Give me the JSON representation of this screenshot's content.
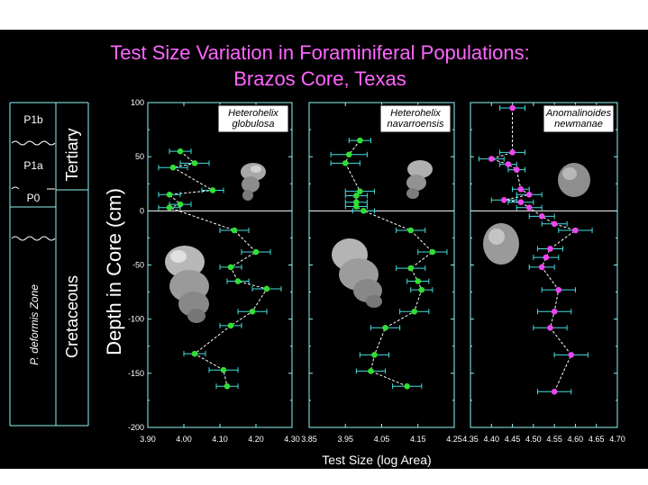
{
  "colors": {
    "background": "#000000",
    "title": "#ff66ff",
    "frame": "#8ff4f4",
    "text": "#ffffff",
    "green": "#33dd33",
    "magenta": "#ee44ee",
    "errorbar": "#44dddd"
  },
  "title_line1": "Test Size Variation in Foraminiferal Populations:",
  "title_line2": "Brazos Core, Texas",
  "ylabel": "Depth in Core (cm)",
  "xlabel": "Test Size (log Area)",
  "strat": {
    "p1b": "P1b",
    "p1a": "P1a",
    "p0": "P0",
    "zone": "P. deformis Zone",
    "tertiary": "Tertiary",
    "cretaceous": "Cretaceous"
  },
  "chart_data": [
    {
      "type": "scatter",
      "title": "Heterohelix globulosa",
      "xlabel": "Test Size (log Area)",
      "ylabel": "Depth in Core (cm)",
      "xlim": [
        3.9,
        4.3
      ],
      "ylim": [
        -200,
        100
      ],
      "xticks": [
        "3.90",
        "4.00",
        "4.10",
        "4.20",
        "4.30"
      ],
      "yticks": [
        "100",
        "50",
        "0",
        "-50",
        "-100",
        "-150",
        "-200"
      ],
      "grid": false,
      "color": "#33dd33",
      "points": [
        {
          "x": 3.99,
          "y": 55,
          "err": 0.03
        },
        {
          "x": 4.03,
          "y": 44,
          "err": 0.04
        },
        {
          "x": 3.97,
          "y": 40,
          "err": 0.04
        },
        {
          "x": 4.08,
          "y": 19,
          "err": 0.03
        },
        {
          "x": 3.96,
          "y": 15,
          "err": 0.03
        },
        {
          "x": 3.99,
          "y": 6,
          "err": 0.03
        },
        {
          "x": 3.96,
          "y": 3,
          "err": 0.03
        },
        {
          "x": 4.14,
          "y": -18,
          "err": 0.04
        },
        {
          "x": 4.2,
          "y": -38,
          "err": 0.04
        },
        {
          "x": 4.13,
          "y": -52,
          "err": 0.03
        },
        {
          "x": 4.15,
          "y": -65,
          "err": 0.03
        },
        {
          "x": 4.23,
          "y": -72,
          "err": 0.04
        },
        {
          "x": 4.19,
          "y": -93,
          "err": 0.04
        },
        {
          "x": 4.13,
          "y": -106,
          "err": 0.03
        },
        {
          "x": 4.03,
          "y": -132,
          "err": 0.03
        },
        {
          "x": 4.11,
          "y": -147,
          "err": 0.04
        },
        {
          "x": 4.12,
          "y": -162,
          "err": 0.03
        }
      ]
    },
    {
      "type": "scatter",
      "title": "Heterohelix navarroensis",
      "xlabel": "Test Size (log Area)",
      "ylabel": "Depth in Core (cm)",
      "xlim": [
        3.85,
        4.25
      ],
      "ylim": [
        -200,
        100
      ],
      "xticks": [
        "3.85",
        "3.95",
        "4.05",
        "4.15",
        "4.25"
      ],
      "yticks": [
        "100",
        "50",
        "0",
        "-50",
        "-100",
        "-150",
        "-200"
      ],
      "grid": false,
      "color": "#33dd33",
      "points": [
        {
          "x": 3.99,
          "y": 65,
          "err": 0.03
        },
        {
          "x": 3.96,
          "y": 52,
          "err": 0.05
        },
        {
          "x": 3.95,
          "y": 44,
          "err": 0.04
        },
        {
          "x": 3.99,
          "y": 18,
          "err": 0.04
        },
        {
          "x": 3.98,
          "y": 14,
          "err": 0.03
        },
        {
          "x": 3.98,
          "y": 8,
          "err": 0.03
        },
        {
          "x": 3.98,
          "y": 4,
          "err": 0.03
        },
        {
          "x": 4.0,
          "y": 0,
          "err": 0.03
        },
        {
          "x": 4.13,
          "y": -18,
          "err": 0.04
        },
        {
          "x": 4.19,
          "y": -38,
          "err": 0.04
        },
        {
          "x": 4.13,
          "y": -53,
          "err": 0.04
        },
        {
          "x": 4.15,
          "y": -65,
          "err": 0.03
        },
        {
          "x": 4.16,
          "y": -73,
          "err": 0.03
        },
        {
          "x": 4.14,
          "y": -93,
          "err": 0.04
        },
        {
          "x": 4.06,
          "y": -108,
          "err": 0.04
        },
        {
          "x": 4.03,
          "y": -133,
          "err": 0.04
        },
        {
          "x": 4.02,
          "y": -148,
          "err": 0.04
        },
        {
          "x": 4.12,
          "y": -162,
          "err": 0.04
        }
      ]
    },
    {
      "type": "scatter",
      "title": "Anomalinoides newmanae",
      "xlabel": "Test Size (log Area)",
      "ylabel": "Depth in Core (cm)",
      "xlim": [
        4.35,
        4.7
      ],
      "ylim": [
        -200,
        100
      ],
      "xticks": [
        "4.35",
        "4.40",
        "4.45",
        "4.50",
        "4.55",
        "4.60",
        "4.65",
        "4.70"
      ],
      "yticks": [
        "100",
        "50",
        "0",
        "-50",
        "-100",
        "-150",
        "-200"
      ],
      "grid": false,
      "color": "#ee44ee",
      "points": [
        {
          "x": 4.45,
          "y": 95,
          "err": 0.03
        },
        {
          "x": 4.45,
          "y": 54,
          "err": 0.03
        },
        {
          "x": 4.4,
          "y": 48,
          "err": 0.03
        },
        {
          "x": 4.44,
          "y": 43,
          "err": 0.02
        },
        {
          "x": 4.46,
          "y": 38,
          "err": 0.02
        },
        {
          "x": 4.47,
          "y": 20,
          "err": 0.02
        },
        {
          "x": 4.49,
          "y": 15,
          "err": 0.03
        },
        {
          "x": 4.43,
          "y": 10,
          "err": 0.03
        },
        {
          "x": 4.47,
          "y": 8,
          "err": 0.03
        },
        {
          "x": 4.49,
          "y": 3,
          "err": 0.03
        },
        {
          "x": 4.52,
          "y": -5,
          "err": 0.03
        },
        {
          "x": 4.55,
          "y": -12,
          "err": 0.03
        },
        {
          "x": 4.6,
          "y": -18,
          "err": 0.04
        },
        {
          "x": 4.54,
          "y": -35,
          "err": 0.03
        },
        {
          "x": 4.53,
          "y": -43,
          "err": 0.03
        },
        {
          "x": 4.52,
          "y": -52,
          "err": 0.03
        },
        {
          "x": 4.56,
          "y": -73,
          "err": 0.04
        },
        {
          "x": 4.55,
          "y": -93,
          "err": 0.04
        },
        {
          "x": 4.54,
          "y": -108,
          "err": 0.04
        },
        {
          "x": 4.59,
          "y": -133,
          "err": 0.04
        },
        {
          "x": 4.55,
          "y": -167,
          "err": 0.04
        }
      ]
    }
  ]
}
